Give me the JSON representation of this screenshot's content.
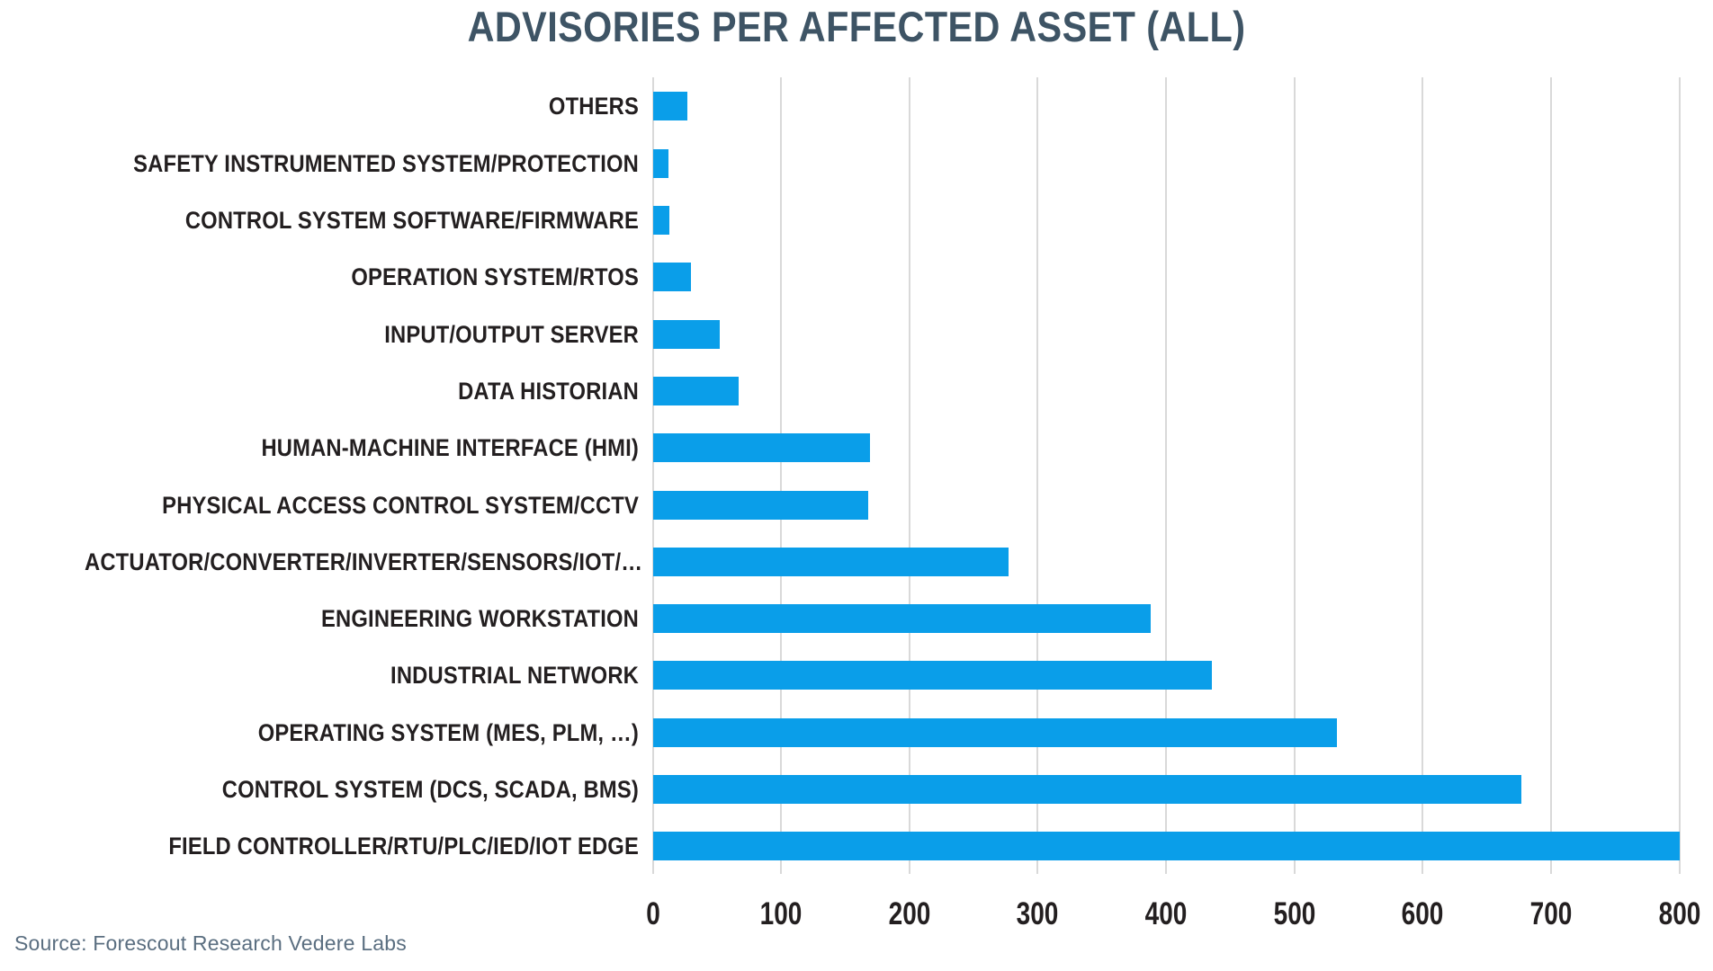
{
  "title": "ADVISORIES PER AFFECTED ASSET (ALL)",
  "source": "Source: Forescout Research Vedere Labs",
  "colors": {
    "bar": "#0A9EE9",
    "title_text": "#3E5465",
    "label_text": "#231F20",
    "gridline": "#D9D9D9",
    "source_text": "#5A6E80",
    "background": "#FFFFFF"
  },
  "chart_data": {
    "type": "bar",
    "orientation": "horizontal",
    "title": "ADVISORIES PER AFFECTED ASSET (ALL)",
    "xlabel": "",
    "ylabel": "",
    "xlim": [
      0,
      800
    ],
    "x_ticks": [
      0,
      100,
      200,
      300,
      400,
      500,
      600,
      700,
      800
    ],
    "grid": true,
    "legend": false,
    "categories": [
      "OTHERS",
      "SAFETY INSTRUMENTED SYSTEM/PROTECTION",
      "CONTROL SYSTEM SOFTWARE/FIRMWARE",
      "OPERATION SYSTEM/RTOS",
      "INPUT/OUTPUT SERVER",
      "DATA HISTORIAN",
      "HUMAN-MACHINE INTERFACE (HMI)",
      "PHYSICAL ACCESS CONTROL SYSTEM/CCTV",
      "ACTUATOR/CONVERTER/INVERTER/SENSORS/IOT/…",
      "ENGINEERING WORKSTATION",
      "INDUSTRIAL NETWORK",
      "OPERATING SYSTEM (MES, PLM, …)",
      "CONTROL SYSTEM (DCS, SCADA, BMS)",
      "FIELD CONTROLLER/RTU/PLC/IED/IOT EDGE"
    ],
    "values": [
      27,
      12,
      13,
      30,
      52,
      67,
      169,
      168,
      277,
      388,
      436,
      533,
      677,
      800
    ]
  }
}
